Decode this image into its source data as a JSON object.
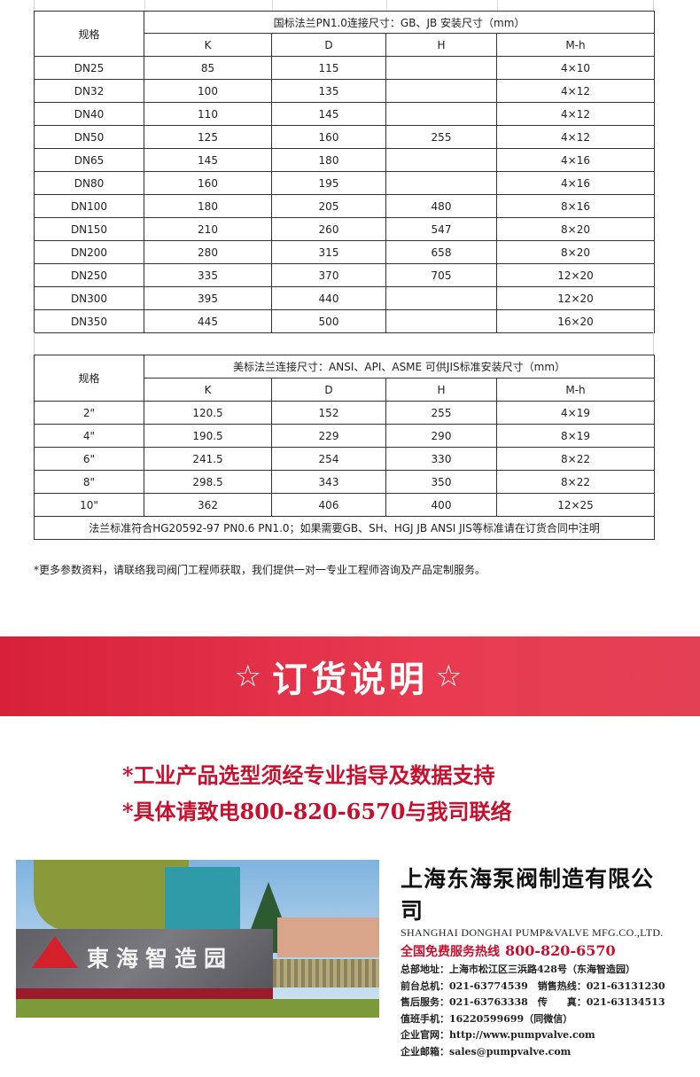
{
  "table_gb": {
    "spec_header": "规格",
    "title": "国标法兰PN1.0连接尺寸：GB、JB 安装尺寸（mm）",
    "columns": [
      "K",
      "D",
      "H",
      "M-h"
    ],
    "rows": [
      [
        "DN25",
        "85",
        "115",
        "",
        "4×10"
      ],
      [
        "DN32",
        "100",
        "135",
        "",
        "4×12"
      ],
      [
        "DN40",
        "110",
        "145",
        "",
        "4×12"
      ],
      [
        "DN50",
        "125",
        "160",
        "255",
        "4×12"
      ],
      [
        "DN65",
        "145",
        "180",
        "",
        "4×16"
      ],
      [
        "DN80",
        "160",
        "195",
        "",
        "4×16"
      ],
      [
        "DN100",
        "180",
        "205",
        "480",
        "8×16"
      ],
      [
        "DN150",
        "210",
        "260",
        "547",
        "8×20"
      ],
      [
        "DN200",
        "280",
        "315",
        "658",
        "8×20"
      ],
      [
        "DN250",
        "335",
        "370",
        "705",
        "12×20"
      ],
      [
        "DN300",
        "395",
        "440",
        "",
        "12×20"
      ],
      [
        "DN350",
        "445",
        "500",
        "",
        "16×20"
      ]
    ]
  },
  "table_ansi": {
    "spec_header": "规格",
    "title": "美标法兰连接尺寸：ANSI、API、ASME 可供JIS标准安装尺寸（mm）",
    "columns": [
      "K",
      "D",
      "H",
      "M-h"
    ],
    "rows": [
      [
        "2\"",
        "120.5",
        "152",
        "255",
        "4×19"
      ],
      [
        "4\"",
        "190.5",
        "229",
        "290",
        "8×19"
      ],
      [
        "6\"",
        "241.5",
        "254",
        "330",
        "8×22"
      ],
      [
        "8\"",
        "298.5",
        "343",
        "350",
        "8×22"
      ],
      [
        "10\"",
        "362",
        "406",
        "400",
        "12×25"
      ]
    ],
    "footnote": "法兰标准符合HG20592-97 PN0.6 PN1.0；如果需要GB、SH、HGJ JB ANSI JIS等标准请在订货合同中注明"
  },
  "note": "*更多参数资料，请联络我司阀门工程师获取，我们提供一对一专业工程师咨询及产品定制服务。",
  "banner": {
    "star": "☆",
    "title": "订货说明",
    "color": "#d8203a"
  },
  "order_lines": [
    "*工业产品选型须经专业指导及数据支持",
    "*具体请致电800-820-6570与我司联络"
  ],
  "photo": {
    "sign_text": "東海智造园"
  },
  "company": {
    "name_cn": "上海东海泵阀制造有限公司",
    "name_en": "SHANGHAI DONGHAI PUMP&VALVE MFG.CO.,LTD.",
    "hotline_label": "全国免费服务热线",
    "hotline": "800-820-6570",
    "lines": [
      "总部地址：上海市松江区三浜路428号（东海智造园）",
      "前台总机：021-63774539　销售热线：021-63131230",
      "售后服务：021-63763338　传　　真：021-63134513",
      "值班手机：16220599699（同微信）",
      "企业官网：http://www.pumpvalve.com",
      "企业邮箱：sales@pumpvalve.com"
    ]
  }
}
